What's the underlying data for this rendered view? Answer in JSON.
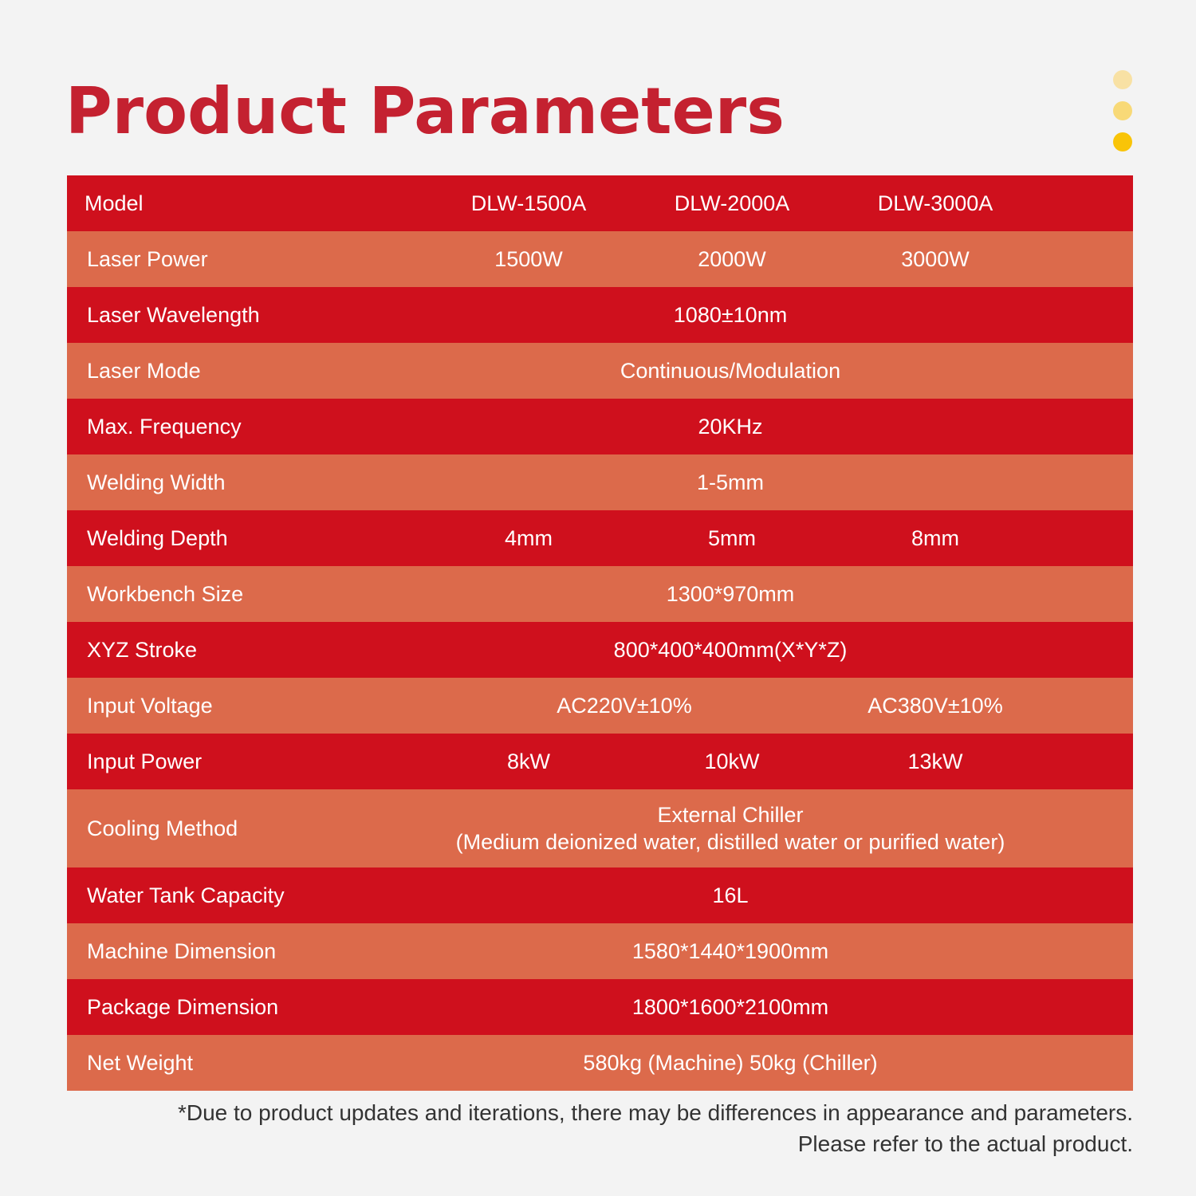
{
  "title": "Product Parameters",
  "decor_dot_colors": [
    "#f8e1a4",
    "#f8d977",
    "#f9c408"
  ],
  "colors": {
    "title": "#c42130",
    "row_red": "#cf101d",
    "row_orange": "#dc6a4b",
    "background": "#f3f3f3"
  },
  "table": {
    "header": {
      "label": "Model",
      "models": [
        "DLW-1500A",
        "DLW-2000A",
        "DLW-3000A"
      ]
    },
    "rows": [
      {
        "label": "Laser Power",
        "values": [
          "1500W",
          "2000W",
          "3000W"
        ]
      },
      {
        "label": "Laser Wavelength",
        "value": "1080±10nm"
      },
      {
        "label": "Laser Mode",
        "value": "Continuous/Modulation"
      },
      {
        "label": "Max. Frequency",
        "value": "20KHz"
      },
      {
        "label": "Welding Width",
        "value": "1-5mm"
      },
      {
        "label": "Welding Depth",
        "values": [
          "4mm",
          "5mm",
          "8mm"
        ]
      },
      {
        "label": "Workbench Size",
        "value": "1300*970mm"
      },
      {
        "label": "XYZ Stroke",
        "value": "800*400*400mm(X*Y*Z)"
      },
      {
        "label": "Input Voltage",
        "value_first_two": "AC220V±10%",
        "value_third": "AC380V±10%"
      },
      {
        "label": "Input Power",
        "values": [
          "8kW",
          "10kW",
          "13kW"
        ]
      },
      {
        "label": "Cooling Method",
        "value_lines": [
          "External Chiller",
          "(Medium deionized water, distilled water or purified water)"
        ]
      },
      {
        "label": "Water Tank Capacity",
        "value": "16L"
      },
      {
        "label": "Machine Dimension",
        "value": "1580*1440*1900mm"
      },
      {
        "label": "Package Dimension",
        "value": "1800*1600*2100mm"
      },
      {
        "label": "Net Weight",
        "value": "580kg (Machine) 50kg (Chiller)"
      }
    ]
  },
  "note": [
    "*Due to product updates and iterations, there may be differences in appearance and parameters.",
    "Please refer to the actual product."
  ]
}
